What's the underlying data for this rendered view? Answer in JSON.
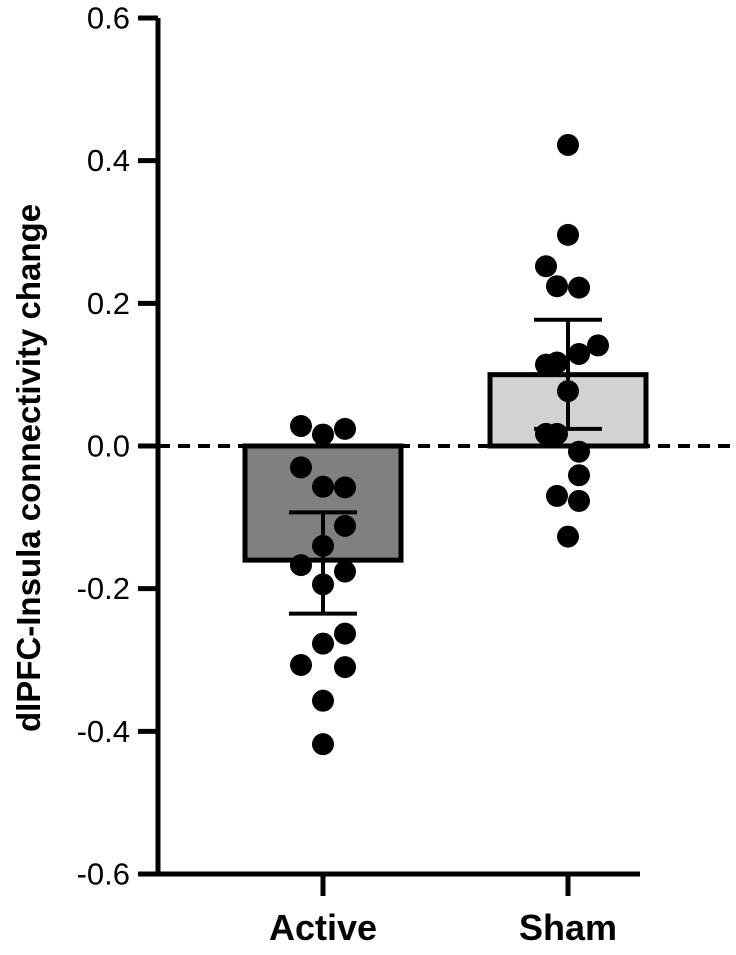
{
  "chart_data": {
    "type": "bar",
    "title": "",
    "xlabel": "",
    "ylabel": "dlPFC-Insula connectivity change",
    "ylim": [
      -0.6,
      0.6
    ],
    "yticks": [
      0.6,
      0.4,
      0.2,
      0.0,
      -0.2,
      -0.4,
      -0.6
    ],
    "ytick_labels": [
      "0.6",
      "0.4",
      "0.2",
      "0.0",
      "-0.2",
      "-0.4",
      "-0.6"
    ],
    "grid": false,
    "legend": "none",
    "zero_line": "dashed",
    "categories": [
      "Active",
      "Sham"
    ],
    "values": [
      -0.16,
      0.1
    ],
    "error": [
      {
        "low": -0.235,
        "high": -0.093
      },
      {
        "low": 0.024,
        "high": 0.177
      }
    ],
    "colors": [
      "#808080",
      "#d3d3d3"
    ],
    "points": [
      [
        {
          "x": -0.22,
          "y": 0.028
        },
        {
          "x": -0.22,
          "y": -0.03
        },
        {
          "x": -0.22,
          "y": -0.167
        },
        {
          "x": -0.22,
          "y": -0.307
        },
        {
          "x": 0.0,
          "y": 0.016
        },
        {
          "x": 0.0,
          "y": -0.057
        },
        {
          "x": 0.0,
          "y": -0.14
        },
        {
          "x": 0.0,
          "y": -0.194
        },
        {
          "x": 0.0,
          "y": -0.277
        },
        {
          "x": 0.0,
          "y": -0.357
        },
        {
          "x": 0.0,
          "y": -0.418
        },
        {
          "x": 0.22,
          "y": 0.024
        },
        {
          "x": 0.22,
          "y": -0.058
        },
        {
          "x": 0.22,
          "y": -0.112
        },
        {
          "x": 0.22,
          "y": -0.176
        },
        {
          "x": 0.22,
          "y": -0.263
        },
        {
          "x": 0.22,
          "y": -0.31
        }
      ],
      [
        {
          "x": -0.22,
          "y": 0.252
        },
        {
          "x": -0.22,
          "y": 0.114
        },
        {
          "x": -0.22,
          "y": 0.017
        },
        {
          "x": -0.11,
          "y": 0.224
        },
        {
          "x": -0.11,
          "y": 0.117
        },
        {
          "x": -0.11,
          "y": -0.07
        },
        {
          "x": -0.11,
          "y": 0.017
        },
        {
          "x": 0.0,
          "y": 0.422
        },
        {
          "x": 0.0,
          "y": 0.296
        },
        {
          "x": 0.0,
          "y": 0.077
        },
        {
          "x": 0.0,
          "y": -0.127
        },
        {
          "x": 0.11,
          "y": 0.222
        },
        {
          "x": 0.11,
          "y": 0.129
        },
        {
          "x": 0.11,
          "y": -0.008
        },
        {
          "x": 0.11,
          "y": -0.041
        },
        {
          "x": 0.11,
          "y": -0.077
        },
        {
          "x": 0.3,
          "y": 0.141
        }
      ]
    ]
  }
}
